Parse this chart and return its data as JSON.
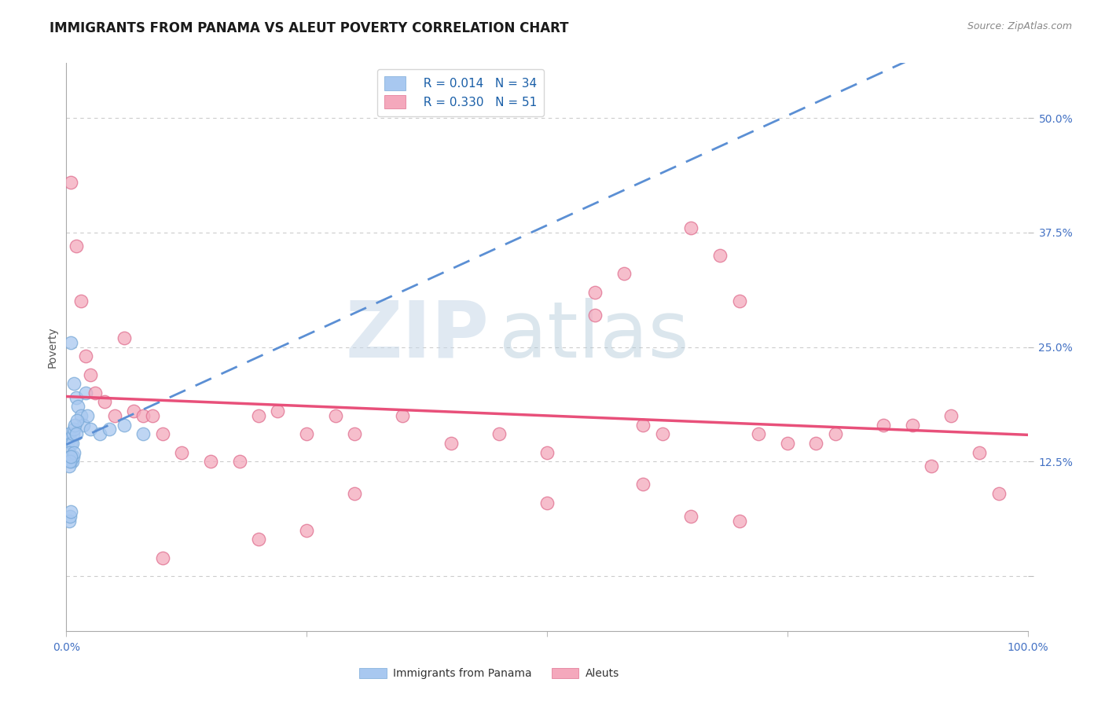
{
  "title": "IMMIGRANTS FROM PANAMA VS ALEUT POVERTY CORRELATION CHART",
  "source_text": "Source: ZipAtlas.com",
  "ylabel": "Poverty",
  "xlim": [
    0.0,
    1.0
  ],
  "ylim": [
    -0.06,
    0.56
  ],
  "yticks": [
    0.0,
    0.125,
    0.25,
    0.375,
    0.5
  ],
  "ytick_labels": [
    "",
    "12.5%",
    "25.0%",
    "37.5%",
    "50.0%"
  ],
  "xticks": [
    0.0,
    0.25,
    0.5,
    0.75,
    1.0
  ],
  "xtick_labels": [
    "0.0%",
    "",
    "",
    "",
    "100.0%"
  ],
  "watermark_zip": "ZIP",
  "watermark_atlas": "atlas",
  "series1_label": "Immigrants from Panama",
  "series1_R": "R = 0.014",
  "series1_N": "N = 34",
  "series1_color": "#a8c8f0",
  "series1_edge": "#7aaad8",
  "series1_x": [
    0.005,
    0.008,
    0.01,
    0.012,
    0.015,
    0.018,
    0.02,
    0.022,
    0.025,
    0.003,
    0.004,
    0.005,
    0.006,
    0.007,
    0.008,
    0.009,
    0.01,
    0.011,
    0.003,
    0.004,
    0.005,
    0.006,
    0.007,
    0.008,
    0.003,
    0.004,
    0.005,
    0.003,
    0.004,
    0.005,
    0.035,
    0.045,
    0.06,
    0.08
  ],
  "series1_y": [
    0.255,
    0.21,
    0.195,
    0.185,
    0.175,
    0.165,
    0.2,
    0.175,
    0.16,
    0.155,
    0.15,
    0.145,
    0.145,
    0.155,
    0.16,
    0.165,
    0.155,
    0.17,
    0.135,
    0.13,
    0.125,
    0.125,
    0.13,
    0.135,
    0.12,
    0.125,
    0.13,
    0.06,
    0.065,
    0.07,
    0.155,
    0.16,
    0.165,
    0.155
  ],
  "series2_label": "Aleuts",
  "series2_R": "R = 0.330",
  "series2_N": "N = 51",
  "series2_color": "#f4a8bc",
  "series2_edge": "#e07090",
  "series2_x": [
    0.005,
    0.01,
    0.015,
    0.02,
    0.025,
    0.03,
    0.04,
    0.05,
    0.06,
    0.07,
    0.08,
    0.09,
    0.1,
    0.12,
    0.15,
    0.18,
    0.2,
    0.22,
    0.25,
    0.28,
    0.3,
    0.35,
    0.4,
    0.45,
    0.5,
    0.55,
    0.55,
    0.58,
    0.6,
    0.62,
    0.65,
    0.68,
    0.7,
    0.72,
    0.75,
    0.78,
    0.8,
    0.85,
    0.88,
    0.9,
    0.92,
    0.95,
    0.97,
    0.6,
    0.65,
    0.7,
    0.5,
    0.3,
    0.25,
    0.2,
    0.1
  ],
  "series2_y": [
    0.43,
    0.36,
    0.3,
    0.24,
    0.22,
    0.2,
    0.19,
    0.175,
    0.26,
    0.18,
    0.175,
    0.175,
    0.155,
    0.135,
    0.125,
    0.125,
    0.175,
    0.18,
    0.155,
    0.175,
    0.155,
    0.175,
    0.145,
    0.155,
    0.135,
    0.285,
    0.31,
    0.33,
    0.165,
    0.155,
    0.38,
    0.35,
    0.3,
    0.155,
    0.145,
    0.145,
    0.155,
    0.165,
    0.165,
    0.12,
    0.175,
    0.135,
    0.09,
    0.1,
    0.065,
    0.06,
    0.08,
    0.09,
    0.05,
    0.04,
    0.02
  ],
  "trend1_color": "#5b8fd4",
  "trend2_color": "#e8507a",
  "grid_color": "#cccccc",
  "background_color": "#ffffff",
  "title_fontsize": 12,
  "axis_label_fontsize": 10,
  "tick_fontsize": 10,
  "legend_fontsize": 11,
  "source_fontsize": 9,
  "ylabel_color": "#555555",
  "ytick_color": "#4472c4",
  "xtick_color": "#4472c4"
}
